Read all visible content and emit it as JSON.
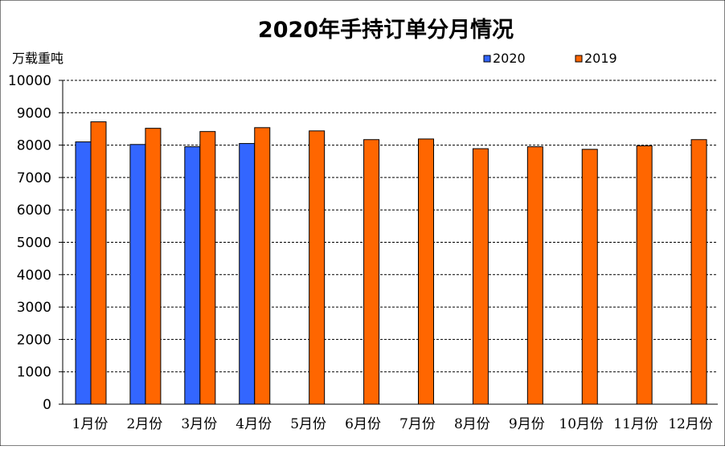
{
  "chart_data": {
    "type": "bar",
    "title": "2020年手持订单分月情况",
    "xlabel": "",
    "ylabel": "万载重吨",
    "ylim": [
      0,
      10000
    ],
    "yticks": [
      0,
      1000,
      2000,
      3000,
      4000,
      5000,
      6000,
      7000,
      8000,
      9000,
      10000
    ],
    "grid": true,
    "legend_position": "top-right",
    "categories": [
      "1月份",
      "2月份",
      "3月份",
      "4月份",
      "5月份",
      "6月份",
      "7月份",
      "8月份",
      "9月份",
      "10月份",
      "11月份",
      "12月份"
    ],
    "series": [
      {
        "name": "2020",
        "color": "#3366FF",
        "values": [
          8100,
          8020,
          7950,
          8050,
          null,
          null,
          null,
          null,
          null,
          null,
          null,
          null
        ]
      },
      {
        "name": "2019",
        "color": "#FF6600",
        "values": [
          8720,
          8520,
          8420,
          8540,
          8440,
          8170,
          8190,
          7890,
          7950,
          7870,
          7980,
          8170
        ]
      }
    ]
  }
}
